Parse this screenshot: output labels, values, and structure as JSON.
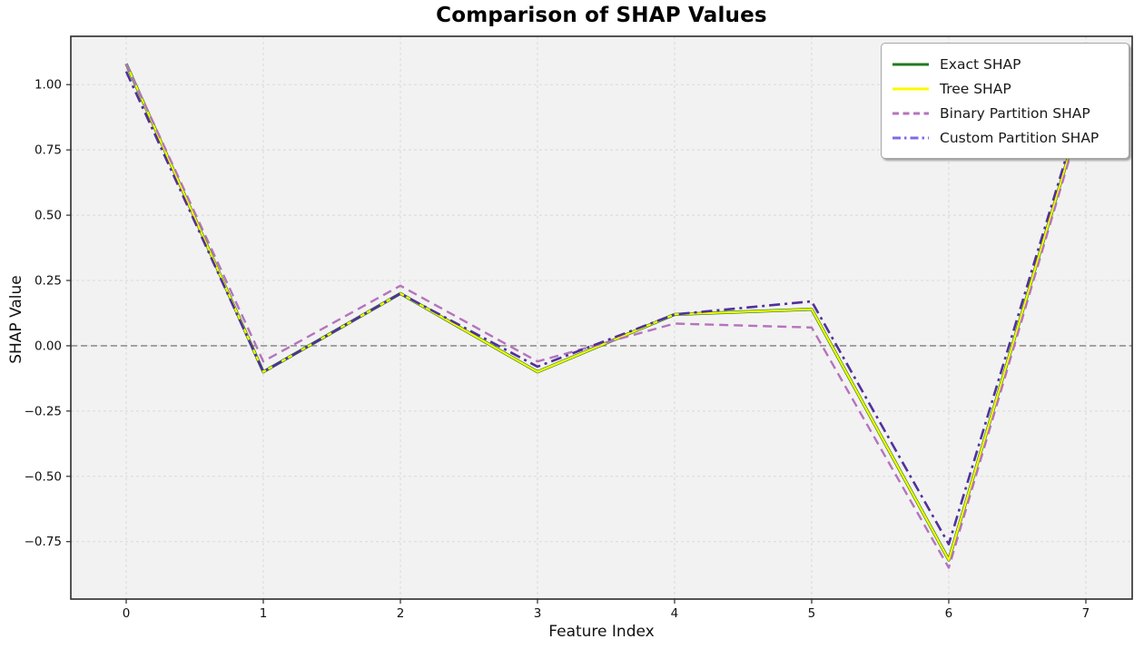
{
  "chart_data": {
    "type": "line",
    "title": "Comparison of SHAP Values",
    "xlabel": "Feature Index",
    "ylabel": "SHAP Value",
    "x": [
      0,
      1,
      2,
      3,
      4,
      5,
      6,
      7
    ],
    "series": [
      {
        "name": "Exact SHAP",
        "color": "#1f7a1f",
        "legend_color": "#1f7a1f",
        "dash": "solid",
        "width": 3.4,
        "values": [
          1.08,
          -0.1,
          0.2,
          -0.1,
          0.12,
          0.14,
          -0.82,
          0.95
        ]
      },
      {
        "name": "Tree SHAP",
        "color": "#fafa00",
        "legend_color": "#fafa00",
        "dash": "solid",
        "width": 2.2,
        "values": [
          1.08,
          -0.1,
          0.2,
          -0.1,
          0.12,
          0.14,
          -0.82,
          0.95
        ]
      },
      {
        "name": "Binary Partition SHAP",
        "color": "#b573bd",
        "legend_color": "#b573bd",
        "dash": "dashed",
        "width": 2.4,
        "values": [
          1.08,
          -0.06,
          0.23,
          -0.06,
          0.085,
          0.07,
          -0.85,
          0.93
        ]
      },
      {
        "name": "Custom Partition SHAP",
        "color": "#52309b",
        "legend_color": "#7c6ce8",
        "dash": "dashdot",
        "width": 2.6,
        "values": [
          1.05,
          -0.1,
          0.2,
          -0.08,
          0.12,
          0.17,
          -0.76,
          0.97
        ]
      }
    ],
    "yticks": [
      {
        "label": "1.00",
        "v": 1.0
      },
      {
        "label": "0.75",
        "v": 0.75
      },
      {
        "label": "0.50",
        "v": 0.5
      },
      {
        "label": "0.25",
        "v": 0.25
      },
      {
        "label": "0.00",
        "v": 0.0
      },
      {
        "label": "−0.25",
        "v": -0.25
      },
      {
        "label": "−0.50",
        "v": -0.5
      },
      {
        "label": "−0.75",
        "v": -0.75
      }
    ],
    "xticks": [
      {
        "label": "0",
        "v": 0
      },
      {
        "label": "1",
        "v": 1
      },
      {
        "label": "2",
        "v": 2
      },
      {
        "label": "3",
        "v": 3
      },
      {
        "label": "4",
        "v": 4
      },
      {
        "label": "5",
        "v": 5
      },
      {
        "label": "6",
        "v": 6
      },
      {
        "label": "7",
        "v": 7
      }
    ],
    "ylim": [
      -0.97,
      1.185
    ],
    "xlim": [
      -0.404,
      7.338
    ],
    "grid": "dashed",
    "zero_line": true,
    "legend_position": "upper right",
    "colors": {
      "figure_bg": "#ffffff",
      "plot_bg": "#f2f2f2",
      "grid": "#d9d9d9",
      "spine": "#2b2b2b",
      "zero_line": "#808080",
      "tick_text": "#111111"
    }
  }
}
